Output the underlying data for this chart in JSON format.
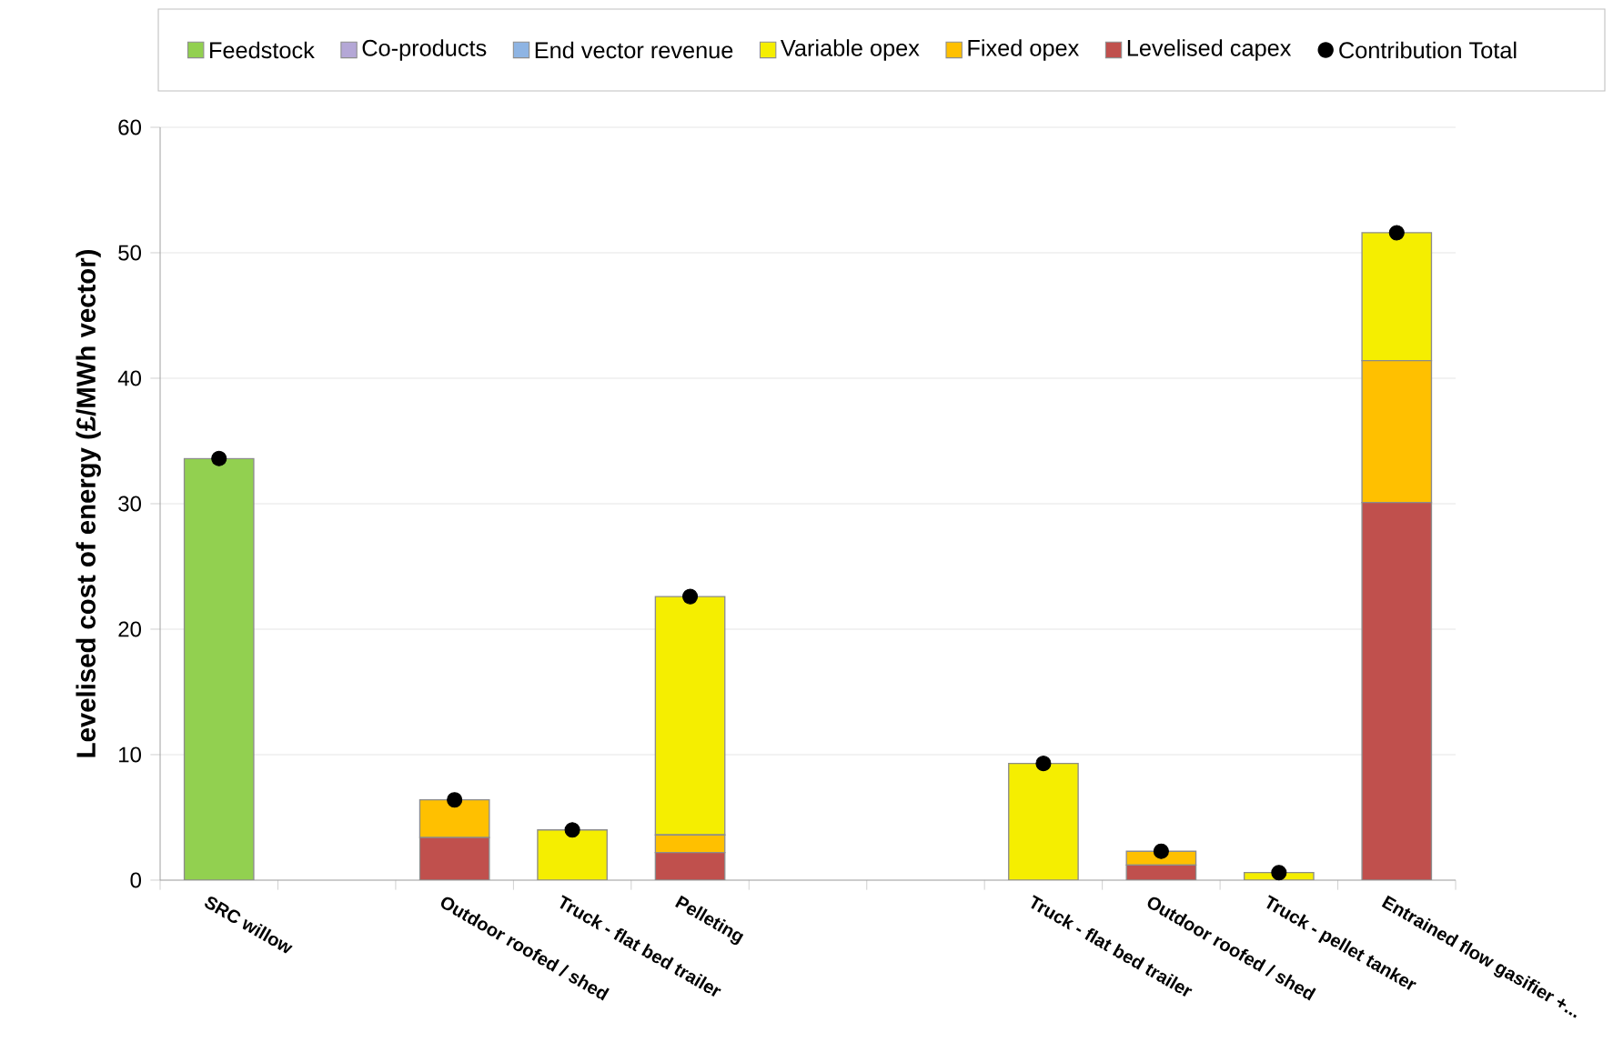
{
  "chart_data": {
    "type": "bar",
    "stacked": true,
    "ylabel": "Levelised  cost of energy (£/MWh vector)",
    "categories": [
      "SRC willow",
      null,
      "Outdoor roofed / shed",
      "Truck - flat bed trailer",
      "Pelleting",
      null,
      null,
      "Truck - flat bed trailer",
      "Outdoor roofed / shed",
      "Truck - pellet tanker",
      "Entrained flow gasifier +..."
    ],
    "series": [
      {
        "name": "Levelised capex",
        "color": "#c0504d",
        "values": [
          null,
          null,
          3.4,
          null,
          2.2,
          null,
          null,
          null,
          1.2,
          null,
          30.1
        ]
      },
      {
        "name": "Fixed opex",
        "color": "#ffc000",
        "values": [
          null,
          null,
          3.0,
          null,
          1.4,
          null,
          null,
          null,
          1.1,
          null,
          11.3
        ]
      },
      {
        "name": "Variable opex",
        "color": "#f5ee00",
        "values": [
          null,
          null,
          null,
          4.0,
          19.0,
          null,
          null,
          9.3,
          null,
          0.6,
          10.2
        ]
      },
      {
        "name": "End vector revenue",
        "color": "#8eb4e3",
        "values": [
          null,
          null,
          null,
          null,
          null,
          null,
          null,
          null,
          null,
          null,
          null
        ]
      },
      {
        "name": "Co-products",
        "color": "#b4a7d6",
        "values": [
          null,
          null,
          null,
          null,
          null,
          null,
          null,
          null,
          null,
          null,
          null
        ]
      },
      {
        "name": "Feedstock",
        "color": "#92d050",
        "values": [
          33.6,
          null,
          null,
          null,
          null,
          null,
          null,
          null,
          null,
          null,
          null
        ]
      },
      {
        "name": "Contribution Total",
        "type": "scatter",
        "marker": "circle",
        "color": "#000000",
        "values": [
          33.6,
          null,
          6.4,
          4.0,
          22.6,
          null,
          null,
          9.3,
          2.3,
          0.6,
          51.6
        ]
      }
    ],
    "ylim": [
      0,
      60
    ],
    "yticks": [
      0,
      10,
      20,
      30,
      40,
      50,
      60
    ],
    "grid": "y",
    "legend": "top"
  }
}
